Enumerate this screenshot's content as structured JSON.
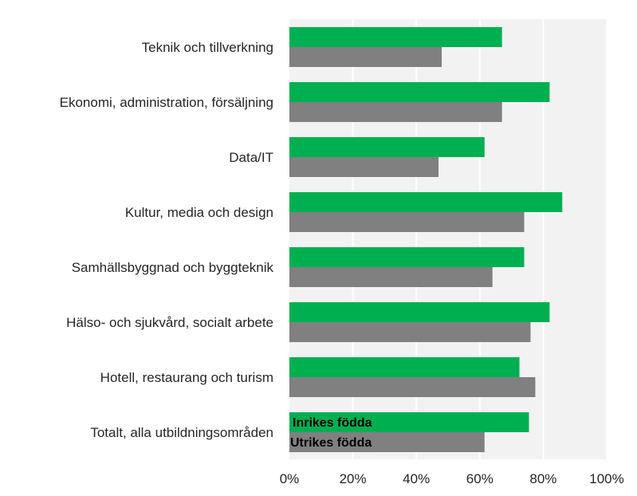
{
  "chart_data": {
    "type": "bar",
    "orientation": "horizontal",
    "categories": [
      "Teknik och tillverkning",
      "Ekonomi, administration, försäljning",
      "Data/IT",
      "Kultur, media och design",
      "Samhällsbyggnad och byggteknik",
      "Hälso- och sjukvård, socialt arbete",
      "Hotell, restaurang och turism",
      "Totalt, alla utbildningsområden"
    ],
    "series": [
      {
        "name": "Inrikes födda",
        "color": "#00b050",
        "values": [
          67,
          82,
          61.5,
          86,
          74,
          82,
          72.5,
          75.5
        ]
      },
      {
        "name": "Utrikes födda",
        "color": "#808080",
        "values": [
          48,
          67,
          47,
          74,
          64,
          76,
          77.5,
          61.5
        ]
      }
    ],
    "xlim": [
      0,
      100
    ],
    "x_ticks": [
      "0%",
      "20%",
      "40%",
      "60%",
      "80%",
      "100%"
    ],
    "plot_background": "#f2f2f2",
    "gridlines": true,
    "legend": "inside bars of last category"
  }
}
